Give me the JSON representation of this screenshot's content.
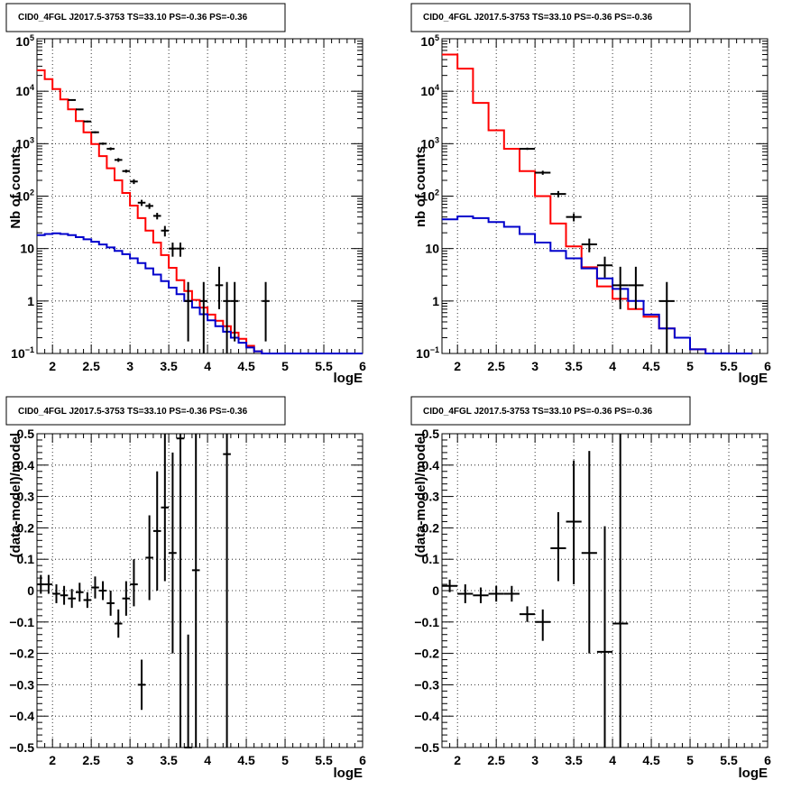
{
  "chart_data": [
    {
      "type": "histogram",
      "title": "CID0_4FGL J2017.5-3753 TS=33.10 PS=-0.36 PS=-0.36",
      "xlabel": "logE",
      "ylabel": "Nb of counts",
      "xlim": [
        1.8,
        6.0
      ],
      "ylim": [
        0.1,
        100000
      ],
      "yscale": "log",
      "grid": true,
      "xticks": [
        "2",
        "2.5",
        "3",
        "3.5",
        "4",
        "4.5",
        "5",
        "5.5",
        "6"
      ],
      "bin_edges": [
        1.8,
        1.9,
        2.0,
        2.1,
        2.2,
        2.3,
        2.4,
        2.5,
        2.6,
        2.7,
        2.8,
        2.9,
        3.0,
        3.1,
        3.2,
        3.3,
        3.4,
        3.5,
        3.6,
        3.7,
        3.8,
        3.9,
        4.0,
        4.1,
        4.2,
        4.3,
        4.4,
        4.5,
        4.6,
        4.7,
        4.8,
        4.9,
        5.0,
        5.1,
        5.2,
        5.3,
        5.4,
        5.5,
        5.6,
        5.7,
        5.8,
        5.9,
        6.0
      ],
      "series": [
        {
          "color": "#ff0000",
          "style": "step",
          "values": [
            25000,
            17000,
            11000,
            7000,
            4500,
            2700,
            1650,
            980,
            580,
            340,
            200,
            115,
            66,
            38,
            22,
            13,
            7.5,
            4.3,
            2.5,
            1.55,
            1.05,
            0.75,
            0.55,
            0.42,
            0.33,
            0.25,
            0.19,
            0.14,
            0.11,
            0.1,
            0.1,
            0.1,
            0.1,
            0.1,
            0.1,
            0.1,
            0.1,
            0.1,
            0.1,
            0.1,
            0.1,
            0.1
          ]
        },
        {
          "color": "#0000cc",
          "style": "step",
          "values": [
            18,
            19,
            19.5,
            19,
            18,
            16.5,
            15,
            13.5,
            12,
            10.5,
            9,
            7.8,
            6.5,
            5.3,
            4.2,
            3.2,
            2.4,
            1.8,
            1.35,
            1.0,
            0.75,
            0.56,
            0.43,
            0.33,
            0.26,
            0.2,
            0.16,
            0.13,
            0.11,
            0.1,
            0.1,
            0.1,
            0.1,
            0.1,
            0.1,
            0.1,
            0.1,
            0.1,
            0.1,
            0.1,
            0.1,
            0.1
          ]
        }
      ],
      "points": [
        {
          "x": 2.25,
          "y": 6800,
          "lo": 6600,
          "hi": 7000
        },
        {
          "x": 2.35,
          "y": 4500,
          "lo": 4350,
          "hi": 4650
        },
        {
          "x": 2.45,
          "y": 2650,
          "lo": 2550,
          "hi": 2750
        },
        {
          "x": 2.55,
          "y": 1650,
          "lo": 1580,
          "hi": 1720
        },
        {
          "x": 2.65,
          "y": 1000,
          "lo": 950,
          "hi": 1050
        },
        {
          "x": 2.75,
          "y": 800,
          "lo": 750,
          "hi": 850
        },
        {
          "x": 2.85,
          "y": 490,
          "lo": 450,
          "hi": 530
        },
        {
          "x": 2.95,
          "y": 300,
          "lo": 280,
          "hi": 320
        },
        {
          "x": 3.05,
          "y": 190,
          "lo": 170,
          "hi": 210
        },
        {
          "x": 3.15,
          "y": 75,
          "lo": 65,
          "hi": 85
        },
        {
          "x": 3.25,
          "y": 65,
          "lo": 57,
          "hi": 73
        },
        {
          "x": 3.35,
          "y": 42,
          "lo": 36,
          "hi": 48
        },
        {
          "x": 3.45,
          "y": 22,
          "lo": 17,
          "hi": 27
        },
        {
          "x": 3.55,
          "y": 10,
          "lo": 7,
          "hi": 13
        },
        {
          "x": 3.65,
          "y": 10,
          "lo": 7,
          "hi": 13
        },
        {
          "x": 3.75,
          "y": 1,
          "lo": 0.17,
          "hi": 2.3
        },
        {
          "x": 3.95,
          "y": 1,
          "lo": 0.1,
          "hi": 2.3
        },
        {
          "x": 4.15,
          "y": 2,
          "lo": 0.7,
          "hi": 4.5
        },
        {
          "x": 4.25,
          "y": 1,
          "lo": 0.1,
          "hi": 2.3
        },
        {
          "x": 4.35,
          "y": 1,
          "lo": 0.17,
          "hi": 2.3
        },
        {
          "x": 4.75,
          "y": 1,
          "lo": 0.17,
          "hi": 2.3
        }
      ]
    },
    {
      "type": "histogram",
      "title": "CID0_4FGL J2017.5-3753 TS=33.10 PS=-0.36 PS=-0.36",
      "xlabel": "logE",
      "ylabel": "nb of counts",
      "xlim": [
        1.8,
        6.0
      ],
      "ylim": [
        0.1,
        100000
      ],
      "yscale": "log",
      "grid": true,
      "xticks": [
        "2",
        "2.5",
        "3",
        "3.5",
        "4",
        "4.5",
        "5",
        "5.5",
        "6"
      ],
      "bin_edges": [
        1.8,
        2.0,
        2.2,
        2.4,
        2.6,
        2.8,
        3.0,
        3.2,
        3.4,
        3.6,
        3.8,
        4.0,
        4.2,
        4.4,
        4.6,
        4.8,
        5.0,
        5.2,
        5.4,
        5.6,
        5.8,
        6.0
      ],
      "series": [
        {
          "color": "#ff0000",
          "style": "step",
          "values": [
            50000,
            27000,
            6000,
            1800,
            800,
            300,
            100,
            30,
            11,
            4.4,
            1.9,
            1.1,
            0.7,
            0.5,
            0.3,
            0.2,
            0.12,
            0.1,
            0.1,
            0.1
          ]
        },
        {
          "color": "#0000cc",
          "style": "step",
          "values": [
            36,
            41,
            38,
            32,
            26,
            19,
            13,
            9,
            6.5,
            4.2,
            2.7,
            1.7,
            1.0,
            0.55,
            0.3,
            0.2,
            0.12,
            0.1,
            0.1,
            0.1
          ]
        }
      ],
      "points": [
        {
          "x": 2.9,
          "y": 800,
          "lo": 760,
          "hi": 840
        },
        {
          "x": 3.1,
          "y": 280,
          "lo": 255,
          "hi": 305
        },
        {
          "x": 3.3,
          "y": 110,
          "lo": 95,
          "hi": 125
        },
        {
          "x": 3.5,
          "y": 40,
          "lo": 33,
          "hi": 47
        },
        {
          "x": 3.7,
          "y": 12,
          "lo": 8.5,
          "hi": 15.5
        },
        {
          "x": 3.9,
          "y": 4.8,
          "lo": 2.8,
          "hi": 7
        },
        {
          "x": 4.1,
          "y": 2,
          "lo": 0.7,
          "hi": 4.5
        },
        {
          "x": 4.3,
          "y": 2,
          "lo": 0.7,
          "hi": 4.5
        },
        {
          "x": 4.7,
          "y": 1,
          "lo": 0.1,
          "hi": 2.3
        }
      ]
    },
    {
      "type": "scatter",
      "title": "CID0_4FGL J2017.5-3753 TS=33.10 PS=-0.36 PS=-0.36",
      "xlabel": "logE",
      "ylabel": "(data-model)/model",
      "xlim": [
        1.8,
        6.0
      ],
      "ylim": [
        -0.5,
        0.5
      ],
      "grid": true,
      "xticks": [
        "2",
        "2.5",
        "3",
        "3.5",
        "4",
        "4.5",
        "5",
        "5.5",
        "6"
      ],
      "yticks": [
        "-0.5",
        "-0.4",
        "-0.3",
        "-0.2",
        "-0.1",
        "0",
        "0.1",
        "0.2",
        "0.3",
        "0.4",
        "0.5"
      ],
      "points": [
        {
          "x": 1.85,
          "y": 0.02,
          "lo": -0.01,
          "hi": 0.05,
          "hw": 0.05
        },
        {
          "x": 1.95,
          "y": 0.02,
          "lo": -0.01,
          "hi": 0.05,
          "hw": 0.05
        },
        {
          "x": 2.05,
          "y": -0.01,
          "lo": -0.04,
          "hi": 0.02,
          "hw": 0.05
        },
        {
          "x": 2.15,
          "y": -0.015,
          "lo": -0.045,
          "hi": 0.015,
          "hw": 0.05
        },
        {
          "x": 2.25,
          "y": -0.025,
          "lo": -0.055,
          "hi": 0.005,
          "hw": 0.05
        },
        {
          "x": 2.35,
          "y": -0.005,
          "lo": -0.035,
          "hi": 0.025,
          "hw": 0.05
        },
        {
          "x": 2.45,
          "y": -0.03,
          "lo": -0.055,
          "hi": -0.005,
          "hw": 0.05
        },
        {
          "x": 2.55,
          "y": 0.01,
          "lo": -0.025,
          "hi": 0.045,
          "hw": 0.05
        },
        {
          "x": 2.65,
          "y": 0.0,
          "lo": -0.03,
          "hi": 0.03,
          "hw": 0.05
        },
        {
          "x": 2.75,
          "y": -0.04,
          "lo": -0.08,
          "hi": 0.0,
          "hw": 0.05
        },
        {
          "x": 2.85,
          "y": -0.105,
          "lo": -0.15,
          "hi": -0.06,
          "hw": 0.05
        },
        {
          "x": 2.95,
          "y": -0.025,
          "lo": -0.08,
          "hi": 0.03,
          "hw": 0.05
        },
        {
          "x": 3.05,
          "y": 0.02,
          "lo": -0.05,
          "hi": 0.1,
          "hw": 0.05
        },
        {
          "x": 3.15,
          "y": -0.3,
          "lo": -0.38,
          "hi": -0.22,
          "hw": 0.05
        },
        {
          "x": 3.25,
          "y": 0.105,
          "lo": -0.03,
          "hi": 0.24,
          "hw": 0.05
        },
        {
          "x": 3.35,
          "y": 0.19,
          "lo": 0.0,
          "hi": 0.38,
          "hw": 0.05
        },
        {
          "x": 3.45,
          "y": 0.265,
          "lo": 0.03,
          "hi": 0.5,
          "hw": 0.05
        },
        {
          "x": 3.55,
          "y": 0.12,
          "lo": -0.2,
          "hi": 0.44,
          "hw": 0.05
        },
        {
          "x": 3.65,
          "y": 0.485,
          "lo": -0.5,
          "hi": 0.5,
          "hw": 0.05
        },
        {
          "x": 3.75,
          "y": -0.5,
          "lo": -0.5,
          "hi": -0.14,
          "hw": 0.05
        },
        {
          "x": 3.85,
          "y": 0.065,
          "lo": -0.5,
          "hi": 0.5,
          "hw": 0.05
        },
        {
          "x": 4.25,
          "y": 0.435,
          "lo": -0.5,
          "hi": 0.5,
          "hw": 0.05
        }
      ]
    },
    {
      "type": "scatter",
      "title": "CID0_4FGL J2017.5-3753 TS=33.10 PS=-0.36 PS=-0.36",
      "xlabel": "logE",
      "ylabel": "(data-model)/model",
      "xlim": [
        1.8,
        6.0
      ],
      "ylim": [
        -0.5,
        0.5
      ],
      "grid": true,
      "xticks": [
        "2",
        "2.5",
        "3",
        "3.5",
        "4",
        "4.5",
        "5",
        "5.5",
        "6"
      ],
      "yticks": [
        "-0.5",
        "-0.4",
        "-0.3",
        "-0.2",
        "-0.1",
        "0",
        "0.1",
        "0.2",
        "0.3",
        "0.4",
        "0.5"
      ],
      "points": [
        {
          "x": 1.9,
          "y": 0.015,
          "lo": -0.005,
          "hi": 0.035,
          "hw": 0.1
        },
        {
          "x": 2.1,
          "y": -0.01,
          "lo": -0.04,
          "hi": 0.02,
          "hw": 0.1
        },
        {
          "x": 2.3,
          "y": -0.015,
          "lo": -0.04,
          "hi": 0.01,
          "hw": 0.1
        },
        {
          "x": 2.5,
          "y": -0.01,
          "lo": -0.035,
          "hi": 0.015,
          "hw": 0.1
        },
        {
          "x": 2.7,
          "y": -0.01,
          "lo": -0.035,
          "hi": 0.015,
          "hw": 0.1
        },
        {
          "x": 2.9,
          "y": -0.075,
          "lo": -0.1,
          "hi": -0.05,
          "hw": 0.1
        },
        {
          "x": 3.1,
          "y": -0.1,
          "lo": -0.16,
          "hi": -0.06,
          "hw": 0.1
        },
        {
          "x": 3.3,
          "y": 0.135,
          "lo": 0.03,
          "hi": 0.25,
          "hw": 0.1
        },
        {
          "x": 3.5,
          "y": 0.22,
          "lo": 0.02,
          "hi": 0.415,
          "hw": 0.1
        },
        {
          "x": 3.7,
          "y": 0.12,
          "lo": -0.2,
          "hi": 0.445,
          "hw": 0.1
        },
        {
          "x": 3.9,
          "y": -0.195,
          "lo": -0.5,
          "hi": 0.205,
          "hw": 0.1
        },
        {
          "x": 4.1,
          "y": -0.105,
          "lo": -0.5,
          "hi": 0.5,
          "hw": 0.1
        }
      ]
    }
  ]
}
